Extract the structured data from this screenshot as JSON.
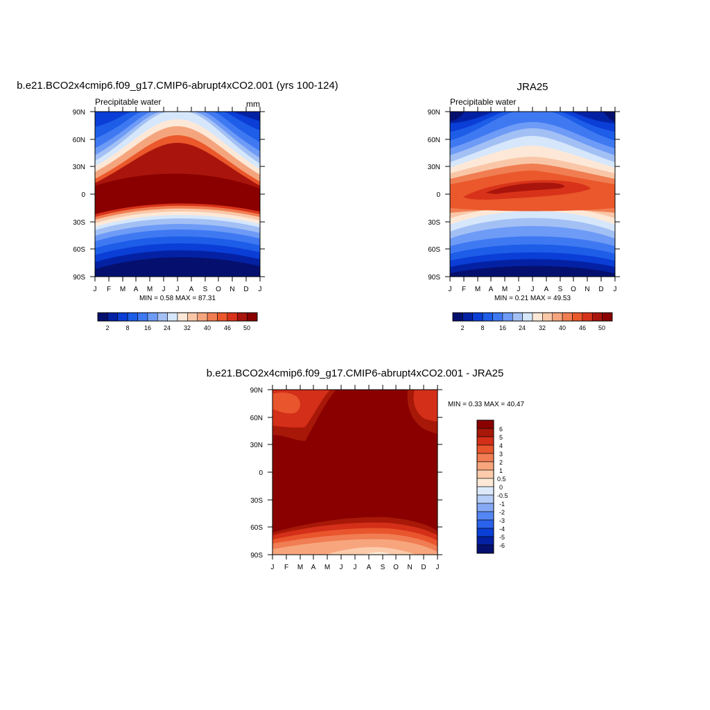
{
  "colors": {
    "palette_16": [
      "#05106e",
      "#0421a4",
      "#0a3ed6",
      "#1d5de8",
      "#3f79f2",
      "#6e9bf6",
      "#a3c0f5",
      "#d6e7fb",
      "#fde8d7",
      "#f9c7a8",
      "#f5a57d",
      "#f07e52",
      "#ea582b",
      "#d8331a",
      "#a9150c",
      "#8a0000"
    ],
    "palette_diff": [
      "#05106e",
      "#0421a4",
      "#0a3ed6",
      "#2a62eb",
      "#5486f4",
      "#86a9f6",
      "#b5cdf7",
      "#dde9fb",
      "#fde9d6",
      "#fbcbac",
      "#f7a57d",
      "#f07d53",
      "#e9552d",
      "#d42f19",
      "#a81808",
      "#8a0000"
    ]
  },
  "chart_data": [
    {
      "type": "heatmap",
      "title": "b.e21.BCO2x4cmip6.f09_g17.CMIP6-abrupt4xCO2.001 (yrs 100-124)",
      "left_label": "Precipitable water",
      "right_label": "mm",
      "x_ticks": [
        "J",
        "F",
        "M",
        "A",
        "M",
        "J",
        "J",
        "A",
        "S",
        "O",
        "N",
        "D",
        "J"
      ],
      "y_ticks": [
        "90N",
        "60N",
        "30N",
        "0",
        "30S",
        "60S",
        "90S"
      ],
      "stats": "MIN =   0.58 MAX =  87.31",
      "colorbar_labels": [
        "2",
        "8",
        "16",
        "24",
        "32",
        "40",
        "46",
        "50"
      ]
    },
    {
      "type": "heatmap",
      "title": "JRA25",
      "left_label": "Precipitable water",
      "right_label": "",
      "x_ticks": [
        "J",
        "F",
        "M",
        "A",
        "M",
        "J",
        "J",
        "A",
        "S",
        "O",
        "N",
        "D",
        "J"
      ],
      "y_ticks": [
        "90N",
        "60N",
        "30N",
        "0",
        "30S",
        "60S",
        "90S"
      ],
      "stats": "MIN =   0.21 MAX =  49.53",
      "colorbar_labels": [
        "2",
        "8",
        "16",
        "24",
        "32",
        "40",
        "46",
        "50"
      ]
    },
    {
      "type": "heatmap",
      "title": "b.e21.BCO2x4cmip6.f09_g17.CMIP6-abrupt4xCO2.001 - JRA25",
      "x_ticks": [
        "J",
        "F",
        "M",
        "A",
        "M",
        "J",
        "J",
        "A",
        "S",
        "O",
        "N",
        "D",
        "J"
      ],
      "y_ticks": [
        "90N",
        "60N",
        "30N",
        "0",
        "30S",
        "60S",
        "90S"
      ],
      "stats": "MIN =   0.33 MAX =  40.47",
      "colorbar_labels": [
        "6",
        "5",
        "4",
        "3",
        "2",
        "1",
        "0.5",
        "0",
        "-0.5",
        "-1",
        "-2",
        "-3",
        "-4",
        "-5",
        "-6"
      ]
    }
  ]
}
